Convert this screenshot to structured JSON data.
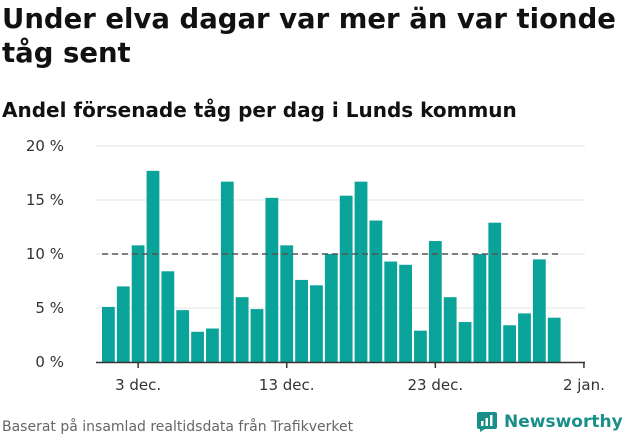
{
  "title": "Under elva dagar var mer än var tionde tåg sent",
  "subtitle": "Andel försenade tåg per dag i Lunds kommun",
  "footer": "Baserat på insamlad realtidsdata från Trafikverket",
  "brand": {
    "name": "Newsworthy",
    "color": "#1a8f8a",
    "icon": "newsworthy-logo-icon"
  },
  "colors": {
    "bar": "#0aa39a",
    "reference_line": "#555555",
    "axis": "#333333",
    "grid": "#e6e6e6"
  },
  "chart_data": {
    "type": "bar",
    "values": [
      5.1,
      7.0,
      10.8,
      17.7,
      8.4,
      4.8,
      2.8,
      3.1,
      16.7,
      6.0,
      4.9,
      15.2,
      10.8,
      7.6,
      7.1,
      10.0,
      15.4,
      16.7,
      13.1,
      9.3,
      9.0,
      2.9,
      11.2,
      6.0,
      3.7,
      10.0,
      12.9,
      3.4,
      4.5,
      9.5,
      4.1
    ],
    "ylim": [
      0,
      20
    ],
    "yticks": [
      0,
      5,
      10,
      15,
      20
    ],
    "ytick_labels": [
      "0 %",
      "5 %",
      "10 %",
      "15 %",
      "20 %"
    ],
    "xticks": [
      {
        "index": 2,
        "label": "3 dec."
      },
      {
        "index": 12,
        "label": "13 dec."
      },
      {
        "index": 22,
        "label": "23 dec."
      },
      {
        "index": 32,
        "label": "2 jan."
      }
    ],
    "reference_line": {
      "value": 10,
      "style": "dashed"
    },
    "grid": true,
    "xlabel": "",
    "ylabel": ""
  }
}
